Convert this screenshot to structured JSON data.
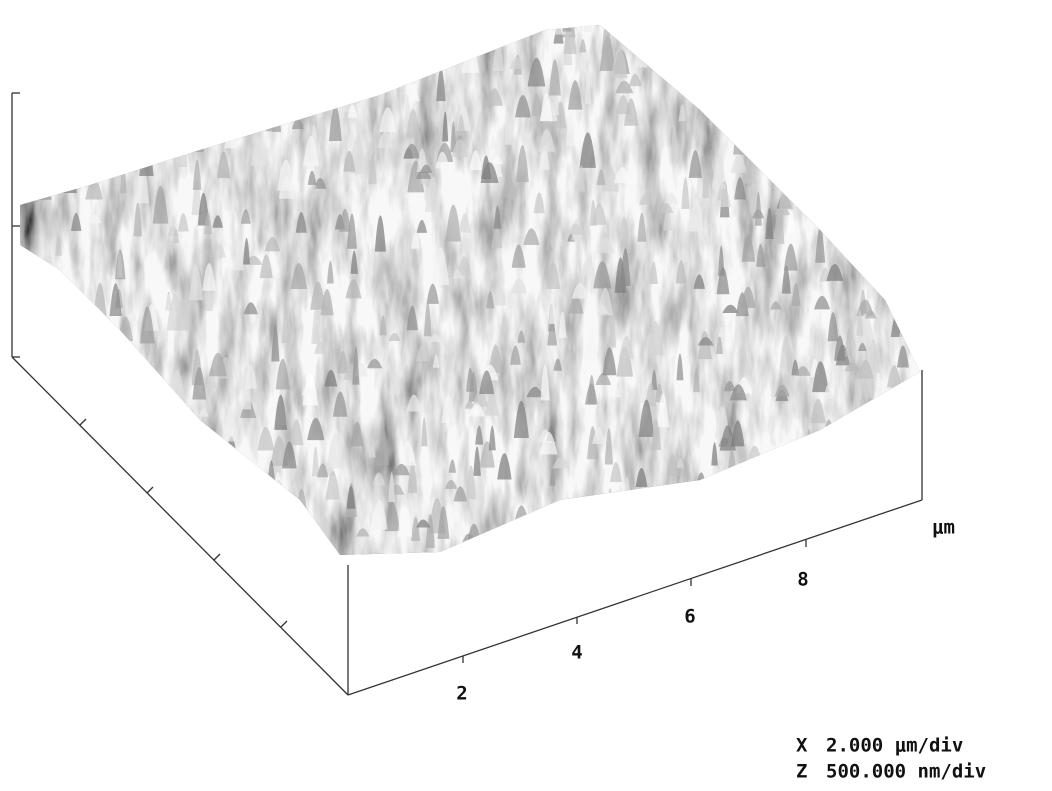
{
  "x_axis": {
    "unit": "μm",
    "tick_labels": [
      "2",
      "4",
      "6",
      "8"
    ]
  },
  "scale": {
    "rows": [
      [
        "X",
        "2.000 μm/div"
      ],
      [
        "Z",
        "500.000 nm/div"
      ]
    ]
  }
}
